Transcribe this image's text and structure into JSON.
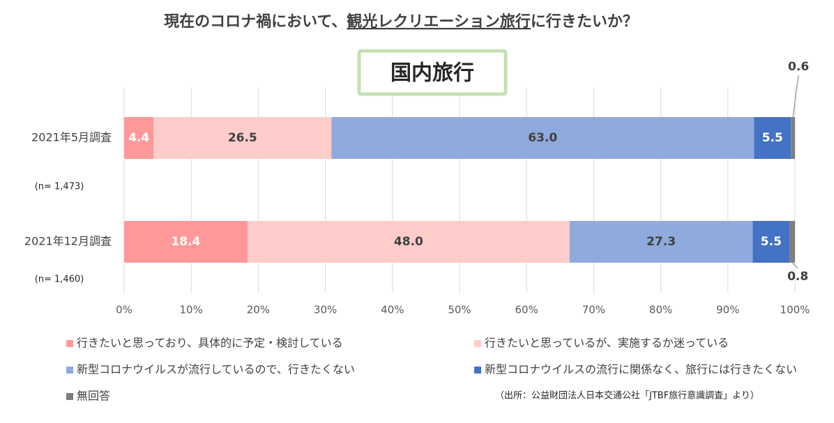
{
  "chart_data": {
    "type": "stacked-bar-horizontal",
    "title": [
      "現在のコロナ禍において、",
      "観光レクリエーション旅行",
      "に行きたいか？"
    ],
    "subtitle": "国内旅行",
    "categories": [
      "2021年5月調査",
      "2021年12月調査"
    ],
    "sample_sizes": [
      "(n= 1,473)",
      "(n= 1,460)"
    ],
    "series": [
      {
        "name": "行きたいと思っており、具体的に予定・検討している",
        "color": "#ff9999",
        "values": [
          4.4,
          18.4
        ],
        "value_labels": [
          "4.4",
          "18.4"
        ]
      },
      {
        "name": "行きたいと思っているが、実施するか迷っている",
        "color": "#ffcccc",
        "values": [
          26.5,
          48.0
        ],
        "value_labels": [
          "26.5",
          "48.0"
        ]
      },
      {
        "name": "新型コロナウイルスが流行しているので、行きたくない",
        "color": "#8faadc",
        "values": [
          63.0,
          27.3
        ],
        "value_labels": [
          "63.0",
          "27.3"
        ]
      },
      {
        "name": "新型コロナウイルスの流行に関係なく、旅行には行きたくない",
        "color": "#4472c4",
        "values": [
          5.5,
          5.5
        ],
        "value_labels": [
          "5.5",
          "5.5"
        ]
      },
      {
        "name": "無回答",
        "color": "#7f7f7f",
        "values": [
          0.6,
          0.8
        ],
        "value_labels": [
          "0.6",
          "0.8"
        ]
      }
    ],
    "xlim": [
      0,
      100
    ],
    "xticks": [
      {
        "value": 0,
        "label": "0%"
      },
      {
        "value": 10,
        "label": "10%"
      },
      {
        "value": 20,
        "label": "20%"
      },
      {
        "value": 30,
        "label": "30%"
      },
      {
        "value": 40,
        "label": "40%"
      },
      {
        "value": 50,
        "label": "50%"
      },
      {
        "value": 60,
        "label": "60%"
      },
      {
        "value": 70,
        "label": "70%"
      },
      {
        "value": 80,
        "label": "80%"
      },
      {
        "value": 90,
        "label": "90%"
      },
      {
        "value": 100,
        "label": "100%"
      }
    ],
    "grid": true,
    "source": "（出所：公益財団法人日本交通公社「JTBF旅行意識調査」より）"
  }
}
